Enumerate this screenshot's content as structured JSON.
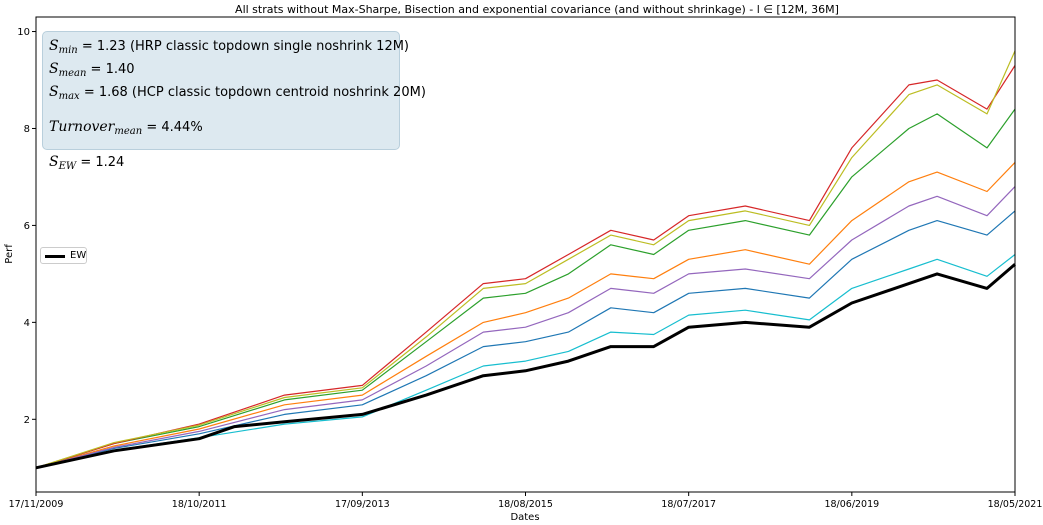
{
  "chart_data": {
    "type": "line",
    "title": "All strats without Max-Sharpe, Bisection and exponential covariance (and without shrinkage) - l ∈ [12M, 36M]",
    "xlabel": "Dates",
    "ylabel": "Perf",
    "x_tick_labels": [
      "17/11/2009",
      "18/10/2011",
      "17/09/2013",
      "18/08/2015",
      "18/07/2017",
      "18/06/2019",
      "18/05/2021"
    ],
    "x_range": [
      "17/11/2009",
      "18/05/2021"
    ],
    "y_ticks": [
      2,
      4,
      6,
      8,
      10
    ],
    "ylim": [
      0.5,
      10.3
    ],
    "grid": false,
    "legend": {
      "position": "center-left",
      "entries": [
        "EW"
      ]
    },
    "series": [
      {
        "name": "EW",
        "color": "#000000",
        "x": [
          "17/11/2009",
          "18/10/2010",
          "18/10/2011",
          "18/03/2012",
          "18/10/2012",
          "17/09/2013",
          "18/06/2014",
          "18/02/2015",
          "18/08/2015",
          "18/02/2016",
          "18/08/2016",
          "18/02/2017",
          "18/07/2017",
          "18/03/2018",
          "18/12/2018",
          "18/06/2019",
          "18/02/2020",
          "18/06/2020",
          "18/01/2021",
          "18/05/2021"
        ],
        "values": [
          1.0,
          1.35,
          1.6,
          1.85,
          1.95,
          2.1,
          2.5,
          2.9,
          3.0,
          3.2,
          3.5,
          3.5,
          3.9,
          4.0,
          3.9,
          4.4,
          4.8,
          5.0,
          4.7,
          5.2
        ]
      },
      {
        "name": "",
        "color": "#1f77b4",
        "x": [
          "17/11/2009",
          "18/10/2010",
          "18/10/2011",
          "18/10/2012",
          "17/09/2013",
          "18/06/2014",
          "18/02/2015",
          "18/08/2015",
          "18/02/2016",
          "18/08/2016",
          "18/02/2017",
          "18/07/2017",
          "18/03/2018",
          "18/12/2018",
          "18/06/2019",
          "18/02/2020",
          "18/06/2020",
          "18/01/2021",
          "18/05/2021"
        ],
        "values": [
          1.0,
          1.4,
          1.7,
          2.1,
          2.3,
          2.9,
          3.5,
          3.6,
          3.8,
          4.3,
          4.2,
          4.6,
          4.7,
          4.5,
          5.3,
          5.9,
          6.1,
          5.8,
          6.3
        ]
      },
      {
        "name": "",
        "color": "#ff7f0e",
        "x": [
          "17/11/2009",
          "18/10/2010",
          "18/10/2011",
          "18/10/2012",
          "17/09/2013",
          "18/06/2014",
          "18/02/2015",
          "18/08/2015",
          "18/02/2016",
          "18/08/2016",
          "18/02/2017",
          "18/07/2017",
          "18/03/2018",
          "18/12/2018",
          "18/06/2019",
          "18/02/2020",
          "18/06/2020",
          "18/01/2021",
          "18/05/2021"
        ],
        "values": [
          1.0,
          1.45,
          1.8,
          2.3,
          2.5,
          3.3,
          4.0,
          4.2,
          4.5,
          5.0,
          4.9,
          5.3,
          5.5,
          5.2,
          6.1,
          6.9,
          7.1,
          6.7,
          7.3
        ]
      },
      {
        "name": "",
        "color": "#2ca02c",
        "x": [
          "17/11/2009",
          "18/10/2010",
          "18/10/2011",
          "18/10/2012",
          "17/09/2013",
          "18/06/2014",
          "18/02/2015",
          "18/08/2015",
          "18/02/2016",
          "18/08/2016",
          "18/02/2017",
          "18/07/2017",
          "18/03/2018",
          "18/12/2018",
          "18/06/2019",
          "18/02/2020",
          "18/06/2020",
          "18/01/2021",
          "18/05/2021"
        ],
        "values": [
          1.0,
          1.5,
          1.85,
          2.4,
          2.6,
          3.6,
          4.5,
          4.6,
          5.0,
          5.6,
          5.4,
          5.9,
          6.1,
          5.8,
          7.0,
          8.0,
          8.3,
          7.6,
          8.4
        ]
      },
      {
        "name": "",
        "color": "#d62728",
        "x": [
          "17/11/2009",
          "18/10/2010",
          "18/10/2011",
          "18/10/2012",
          "17/09/2013",
          "18/06/2014",
          "18/02/2015",
          "18/08/2015",
          "18/02/2016",
          "18/08/2016",
          "18/02/2017",
          "18/07/2017",
          "18/03/2018",
          "18/12/2018",
          "18/06/2019",
          "18/02/2020",
          "18/06/2020",
          "18/01/2021",
          "18/05/2021"
        ],
        "values": [
          1.0,
          1.5,
          1.9,
          2.5,
          2.7,
          3.8,
          4.8,
          4.9,
          5.4,
          5.9,
          5.7,
          6.2,
          6.4,
          6.1,
          7.6,
          8.9,
          9.0,
          8.4,
          9.3
        ]
      },
      {
        "name": "",
        "color": "#9467bd",
        "x": [
          "17/11/2009",
          "18/10/2010",
          "18/10/2011",
          "18/10/2012",
          "17/09/2013",
          "18/06/2014",
          "18/02/2015",
          "18/08/2015",
          "18/02/2016",
          "18/08/2016",
          "18/02/2017",
          "18/07/2017",
          "18/03/2018",
          "18/12/2018",
          "18/06/2019",
          "18/02/2020",
          "18/06/2020",
          "18/01/2021",
          "18/05/2021"
        ],
        "values": [
          1.0,
          1.42,
          1.75,
          2.2,
          2.4,
          3.1,
          3.8,
          3.9,
          4.2,
          4.7,
          4.6,
          5.0,
          5.1,
          4.9,
          5.7,
          6.4,
          6.6,
          6.2,
          6.8
        ]
      },
      {
        "name": "",
        "color": "#bcbd22",
        "x": [
          "17/11/2009",
          "18/10/2010",
          "18/10/2011",
          "18/10/2012",
          "17/09/2013",
          "18/06/2014",
          "18/02/2015",
          "18/08/2015",
          "18/02/2016",
          "18/08/2016",
          "18/02/2017",
          "18/07/2017",
          "18/03/2018",
          "18/12/2018",
          "18/06/2019",
          "18/02/2020",
          "18/06/2020",
          "18/01/2021",
          "18/05/2021"
        ],
        "values": [
          1.0,
          1.52,
          1.88,
          2.45,
          2.65,
          3.7,
          4.7,
          4.8,
          5.3,
          5.8,
          5.6,
          6.1,
          6.3,
          6.0,
          7.4,
          8.7,
          8.9,
          8.3,
          9.6
        ]
      },
      {
        "name": "",
        "color": "#17becf",
        "x": [
          "17/11/2009",
          "18/10/2010",
          "18/10/2011",
          "18/10/2012",
          "17/09/2013",
          "18/06/2014",
          "18/02/2015",
          "18/08/2015",
          "18/02/2016",
          "18/08/2016",
          "18/02/2017",
          "18/07/2017",
          "18/03/2018",
          "18/12/2018",
          "18/06/2019",
          "18/02/2020",
          "18/06/2020",
          "18/01/2021",
          "18/05/2021"
        ],
        "values": [
          1.0,
          1.36,
          1.62,
          1.9,
          2.05,
          2.6,
          3.1,
          3.2,
          3.4,
          3.8,
          3.75,
          4.15,
          4.25,
          4.05,
          4.7,
          5.1,
          5.3,
          4.95,
          5.4
        ]
      }
    ]
  },
  "stats": {
    "s_min_value": "= 1.23 (HRP classic topdown single noshrink 12M)",
    "s_mean_value": "= 1.40",
    "s_max_value": "= 1.68 (HCP classic topdown centroid noshrink 20M)",
    "turnover_value": "= 4.44%",
    "s_ew_value": "= 1.24"
  }
}
